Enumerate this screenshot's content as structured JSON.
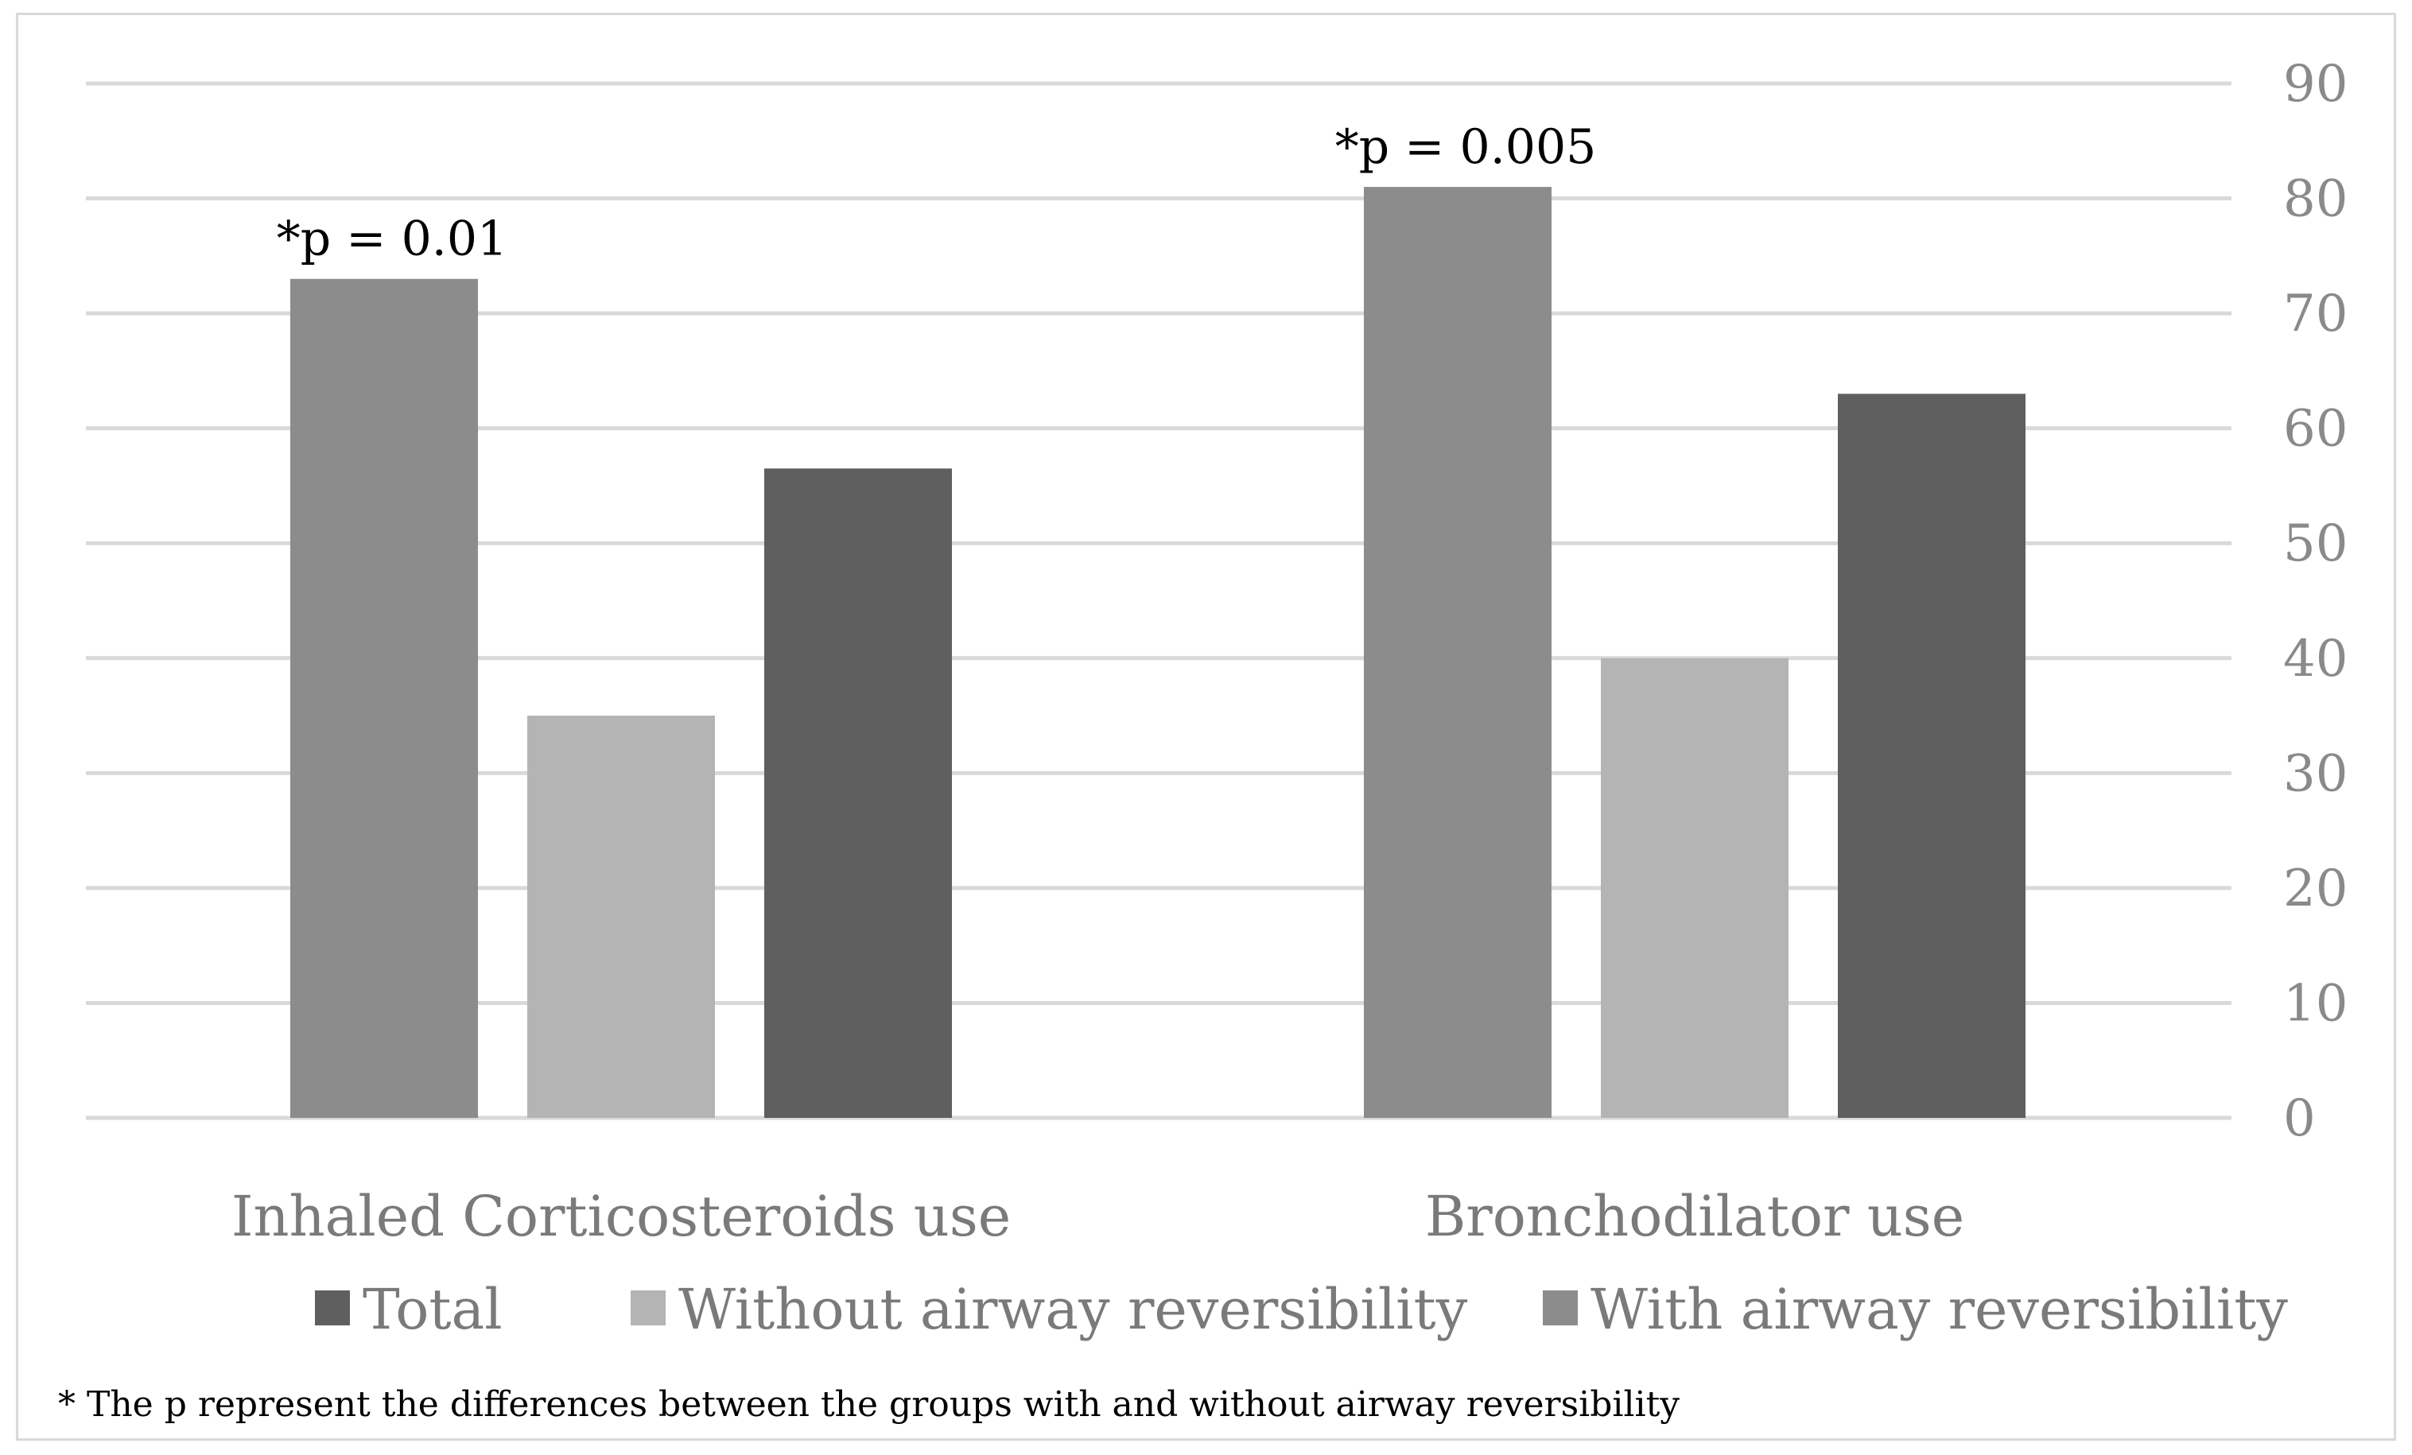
{
  "chart_data": {
    "type": "bar",
    "categories": [
      "Inhaled Corticosteroids use",
      "Bronchodilator use"
    ],
    "series": [
      {
        "name": "With airway reversibility",
        "values": [
          73,
          81
        ],
        "color": "#8c8c8c"
      },
      {
        "name": "Without airway reversibility",
        "values": [
          35,
          40
        ],
        "color": "#b4b4b4"
      },
      {
        "name": "Total",
        "values": [
          56.5,
          63
        ],
        "color": "#5f5f5f"
      }
    ],
    "legend_order": [
      "Total",
      "Without airway reversibility",
      "With airway reversibility"
    ],
    "legend_position": "bottom",
    "y_axis_position": "right",
    "ylim": [
      0,
      90
    ],
    "yticks": [
      "0",
      "10",
      "20",
      "30",
      "40",
      "50",
      "60",
      "70",
      "80",
      "90"
    ],
    "grid": true,
    "title": "",
    "xlabel": "",
    "ylabel": "",
    "annotations": [
      {
        "category": "Inhaled Corticosteroids use",
        "text": "*p = 0.01"
      },
      {
        "category": "Bronchodilator use",
        "text": "*p = 0.005"
      }
    ],
    "footnote": "* The p represent the differences between the groups with and without airway reversibility"
  }
}
